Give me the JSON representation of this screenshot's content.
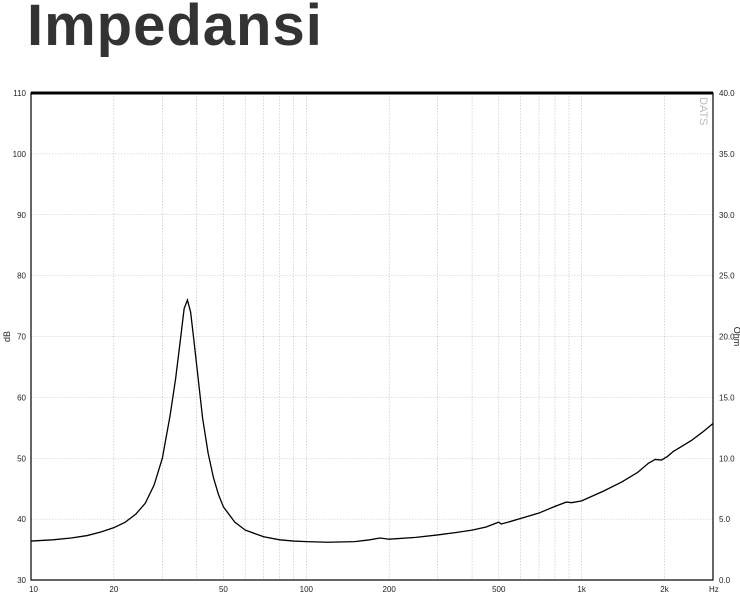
{
  "title": "Impedansi",
  "chart_data": {
    "type": "line",
    "title": "Impedansi",
    "x_scale": "log",
    "xlim": [
      10,
      3000
    ],
    "ylim_left": [
      30,
      110
    ],
    "ylim_right": [
      0,
      40
    ],
    "ylabel_left": "dB",
    "ylabel_right": "Ohm",
    "x_unit_label": "Hz",
    "watermark": "DATS",
    "grid": true,
    "x_tick_labels": [
      {
        "value": 10,
        "label": "10"
      },
      {
        "value": 20,
        "label": "20"
      },
      {
        "value": 50,
        "label": "50"
      },
      {
        "value": 100,
        "label": "100"
      },
      {
        "value": 200,
        "label": "200"
      },
      {
        "value": 500,
        "label": "500"
      },
      {
        "value": 1000,
        "label": "1k"
      },
      {
        "value": 2000,
        "label": "2k"
      }
    ],
    "y_left_ticks": [
      {
        "value": 110,
        "label": "110"
      },
      {
        "value": 100,
        "label": "100"
      },
      {
        "value": 90,
        "label": "90"
      },
      {
        "value": 80,
        "label": "80"
      },
      {
        "value": 70,
        "label": "70"
      },
      {
        "value": 60,
        "label": "60"
      },
      {
        "value": 50,
        "label": "50"
      },
      {
        "value": 40,
        "label": "40"
      },
      {
        "value": 30,
        "label": "30"
      }
    ],
    "y_right_ticks": [
      {
        "value": 40,
        "label": "40.0"
      },
      {
        "value": 35,
        "label": "35.0"
      },
      {
        "value": 30,
        "label": "30.0"
      },
      {
        "value": 25,
        "label": "25.0"
      },
      {
        "value": 20,
        "label": "20.0"
      },
      {
        "value": 15,
        "label": "15.0"
      },
      {
        "value": 10,
        "label": "10.0"
      },
      {
        "value": 5,
        "label": "5.0"
      },
      {
        "value": 0,
        "label": "0.0"
      }
    ],
    "series": [
      {
        "axis": "right",
        "color": "#000000",
        "points": [
          [
            10,
            3.2
          ],
          [
            12,
            3.3
          ],
          [
            14,
            3.45
          ],
          [
            16,
            3.65
          ],
          [
            18,
            3.95
          ],
          [
            20,
            4.3
          ],
          [
            22,
            4.75
          ],
          [
            24,
            5.4
          ],
          [
            26,
            6.3
          ],
          [
            28,
            7.8
          ],
          [
            30,
            10.0
          ],
          [
            32,
            13.5
          ],
          [
            33.5,
            16.5
          ],
          [
            35,
            20.0
          ],
          [
            36,
            22.3
          ],
          [
            37,
            23.0
          ],
          [
            38,
            22.0
          ],
          [
            39,
            19.8
          ],
          [
            40.5,
            16.5
          ],
          [
            42,
            13.3
          ],
          [
            44,
            10.4
          ],
          [
            46,
            8.4
          ],
          [
            48,
            7.0
          ],
          [
            50,
            6.0
          ],
          [
            55,
            4.75
          ],
          [
            60,
            4.1
          ],
          [
            70,
            3.55
          ],
          [
            80,
            3.3
          ],
          [
            90,
            3.2
          ],
          [
            100,
            3.15
          ],
          [
            120,
            3.1
          ],
          [
            150,
            3.15
          ],
          [
            170,
            3.3
          ],
          [
            185,
            3.45
          ],
          [
            200,
            3.35
          ],
          [
            250,
            3.5
          ],
          [
            300,
            3.7
          ],
          [
            350,
            3.9
          ],
          [
            400,
            4.1
          ],
          [
            450,
            4.35
          ],
          [
            480,
            4.6
          ],
          [
            500,
            4.75
          ],
          [
            510,
            4.6
          ],
          [
            550,
            4.8
          ],
          [
            600,
            5.05
          ],
          [
            700,
            5.5
          ],
          [
            800,
            6.05
          ],
          [
            880,
            6.4
          ],
          [
            920,
            6.35
          ],
          [
            1000,
            6.5
          ],
          [
            1200,
            7.3
          ],
          [
            1400,
            8.05
          ],
          [
            1600,
            8.85
          ],
          [
            1750,
            9.6
          ],
          [
            1850,
            9.9
          ],
          [
            1950,
            9.85
          ],
          [
            2050,
            10.15
          ],
          [
            2150,
            10.55
          ],
          [
            2300,
            10.95
          ],
          [
            2500,
            11.45
          ],
          [
            2750,
            12.15
          ],
          [
            3000,
            12.85
          ]
        ]
      }
    ]
  }
}
